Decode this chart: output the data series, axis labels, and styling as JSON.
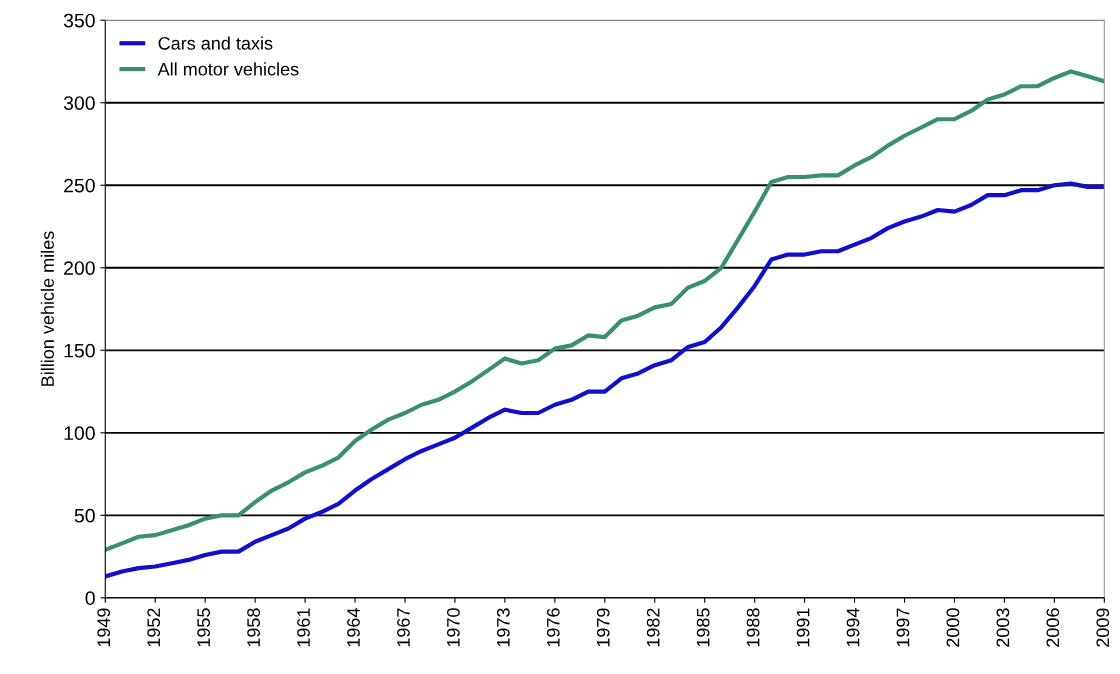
{
  "chart_data": {
    "type": "line",
    "ylabel": "Billion vehicle miles",
    "x": [
      1949,
      1950,
      1951,
      1952,
      1953,
      1954,
      1955,
      1956,
      1957,
      1958,
      1959,
      1960,
      1961,
      1962,
      1963,
      1964,
      1965,
      1966,
      1967,
      1968,
      1969,
      1970,
      1971,
      1972,
      1973,
      1974,
      1975,
      1976,
      1977,
      1978,
      1979,
      1980,
      1981,
      1982,
      1983,
      1984,
      1985,
      1986,
      1987,
      1988,
      1989,
      1990,
      1991,
      1992,
      1993,
      1994,
      1995,
      1996,
      1997,
      1998,
      1999,
      2000,
      2001,
      2002,
      2003,
      2004,
      2005,
      2006,
      2007,
      2008,
      2009
    ],
    "series": [
      {
        "name": "Cars and taxis",
        "color": "#1010cc",
        "values": [
          13,
          16,
          18,
          19,
          21,
          23,
          26,
          28,
          28,
          34,
          38,
          42,
          48,
          52,
          57,
          65,
          72,
          78,
          84,
          89,
          93,
          97,
          103,
          109,
          114,
          112,
          112,
          117,
          120,
          125,
          125,
          133,
          136,
          141,
          144,
          152,
          155,
          164,
          176,
          189,
          205,
          208,
          208,
          210,
          210,
          214,
          218,
          224,
          228,
          231,
          235,
          234,
          238,
          244,
          244,
          247,
          247,
          250,
          251,
          249,
          249
        ]
      },
      {
        "name": "All motor vehicles",
        "color": "#3a8f72",
        "values": [
          29,
          33,
          37,
          38,
          41,
          44,
          48,
          50,
          50,
          58,
          65,
          70,
          76,
          80,
          85,
          95,
          102,
          108,
          112,
          117,
          120,
          125,
          131,
          138,
          145,
          142,
          144,
          151,
          153,
          159,
          158,
          168,
          171,
          176,
          178,
          188,
          192,
          200,
          217,
          234,
          252,
          255,
          255,
          256,
          256,
          262,
          267,
          274,
          280,
          285,
          290,
          290,
          295,
          302,
          305,
          310,
          310,
          315,
          319,
          316,
          313
        ]
      }
    ],
    "xlim": [
      1949,
      2009
    ],
    "xticks": [
      1949,
      1952,
      1955,
      1958,
      1961,
      1964,
      1967,
      1970,
      1973,
      1976,
      1979,
      1982,
      1985,
      1988,
      1991,
      1994,
      1997,
      2000,
      2003,
      2006,
      2009
    ],
    "ylim": [
      0,
      350
    ],
    "yticks": [
      0,
      50,
      100,
      150,
      200,
      250,
      300,
      350
    ],
    "grid": "y",
    "legend": "top left"
  }
}
